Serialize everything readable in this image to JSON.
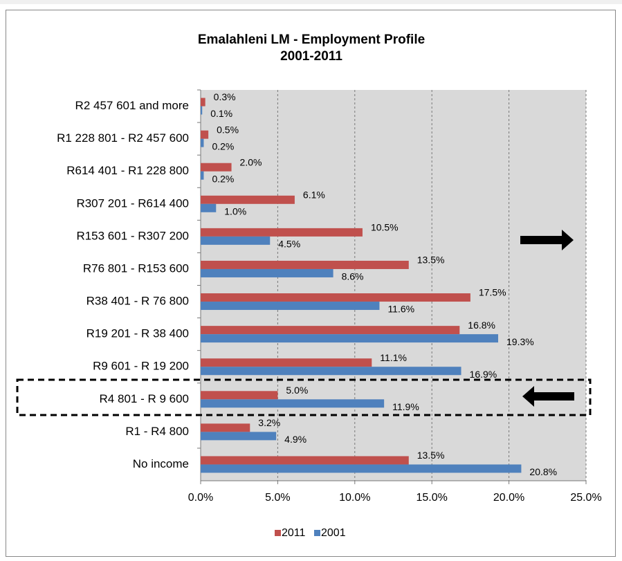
{
  "chart_data": {
    "type": "hbar",
    "title": [
      "Emalahleni LM - Employment Profile",
      "2001-2011"
    ],
    "categories": [
      "R2 457 601 and more",
      "R1 228 801 - R2 457 600",
      "R614 401 - R1 228 800",
      "R307 201 - R614 400",
      "R153 601 - R307 200",
      "R76 801 - R153 600",
      "R38 401 - R 76 800",
      "R19 201 - R 38 400",
      "R9 601 - R 19 200",
      "R4 801 - R  9 600",
      "R1 - R4 800",
      "No income"
    ],
    "series": [
      {
        "name": "2011",
        "color": "#c0504d",
        "values": [
          0.3,
          0.5,
          2.0,
          6.1,
          10.5,
          13.5,
          17.5,
          16.8,
          11.1,
          5.0,
          3.2,
          13.5
        ],
        "value_labels": [
          "0.3%",
          "0.5%",
          "2.0%",
          "6.1%",
          "10.5%",
          "13.5%",
          "17.5%",
          "16.8%",
          "11.1%",
          "5.0%",
          "3.2%",
          "13.5%"
        ]
      },
      {
        "name": "2001",
        "color": "#4f81bd",
        "values": [
          0.1,
          0.2,
          0.2,
          1.0,
          4.5,
          8.6,
          11.6,
          19.3,
          16.9,
          11.9,
          4.9,
          20.8
        ],
        "value_labels": [
          "0.1%",
          "0.2%",
          "0.2%",
          "1.0%",
          "4.5%",
          "8.6%",
          "11.6%",
          "19.3%",
          "16.9%",
          "11.9%",
          "4.9%",
          "20.8%"
        ]
      }
    ],
    "xlim": [
      0,
      25
    ],
    "xticks": [
      {
        "value": 0,
        "label": "0.0%"
      },
      {
        "value": 5,
        "label": "5.0%"
      },
      {
        "value": 10,
        "label": "10.0%"
      },
      {
        "value": 15,
        "label": "15.0%"
      },
      {
        "value": 20,
        "label": "20.0%"
      },
      {
        "value": 25,
        "label": "25.0%"
      }
    ],
    "grid": true,
    "legend": "bottom"
  }
}
